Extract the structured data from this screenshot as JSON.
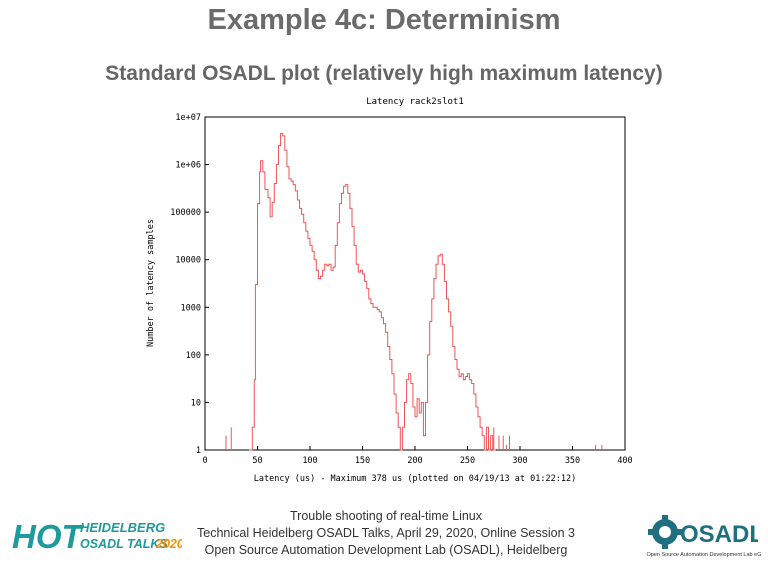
{
  "slide": {
    "title": "Example 4c: Determinism",
    "subtitle": "Standard OSADL plot (relatively high maximum latency)"
  },
  "footer": {
    "line1": "Trouble shooting of real-time Linux",
    "line2": "Technical Heidelberg OSADL Talks, April 29, 2020, Online Session 3",
    "line3": "Open Source Automation Development Lab (OSADL), Heidelberg"
  },
  "logos": {
    "left": {
      "hot": "HOT",
      "heidelberg": "HEIDELBERG",
      "talks": "OSADL TALKS",
      "year": "2020"
    },
    "right": {
      "name": "OSADL",
      "tagline": "Open Source Automation Development Lab eG"
    }
  },
  "colors": {
    "series": "#ee5555",
    "title": "#6b6b6b",
    "hot_teal": "#1e9a9a",
    "hot_orange": "#f39200",
    "osadl_teal": "#1f6f7f"
  },
  "chart_data": {
    "type": "line",
    "title": "Latency rack2slot1",
    "xlabel": "Latency (us) - Maximum 378 us (plotted on 04/19/13 at 01:22:12)",
    "ylabel": "Number of latency samples",
    "xlim": [
      0,
      400
    ],
    "ylim": [
      1,
      10000000
    ],
    "yscale": "log",
    "grid": false,
    "x_ticks": [
      "0",
      "50",
      "100",
      "150",
      "200",
      "250",
      "300",
      "350",
      "400"
    ],
    "y_ticks": [
      "1",
      "10",
      "100",
      "1000",
      "10000",
      "100000",
      "1e+06",
      "1e+07"
    ],
    "series": [
      {
        "points": [
          [
            42,
            1
          ],
          [
            45,
            3
          ],
          [
            47,
            30
          ],
          [
            48,
            3000
          ],
          [
            50,
            150000
          ],
          [
            52,
            700000
          ],
          [
            53,
            1200000
          ],
          [
            55,
            700000
          ],
          [
            57,
            300000
          ],
          [
            60,
            200000
          ],
          [
            62,
            80000
          ],
          [
            64,
            160000
          ],
          [
            66,
            400000
          ],
          [
            68,
            1000000
          ],
          [
            70,
            2500000
          ],
          [
            72,
            4500000
          ],
          [
            74,
            4000000
          ],
          [
            76,
            2000000
          ],
          [
            78,
            900000
          ],
          [
            80,
            500000
          ],
          [
            82,
            450000
          ],
          [
            84,
            380000
          ],
          [
            86,
            280000
          ],
          [
            88,
            180000
          ],
          [
            90,
            120000
          ],
          [
            92,
            90000
          ],
          [
            94,
            60000
          ],
          [
            96,
            40000
          ],
          [
            98,
            28000
          ],
          [
            100,
            20000
          ],
          [
            102,
            15000
          ],
          [
            104,
            10000
          ],
          [
            106,
            6000
          ],
          [
            108,
            4000
          ],
          [
            110,
            4500
          ],
          [
            112,
            6000
          ],
          [
            114,
            8000
          ],
          [
            116,
            7500
          ],
          [
            118,
            8000
          ],
          [
            120,
            6000
          ],
          [
            122,
            7000
          ],
          [
            124,
            20000
          ],
          [
            126,
            60000
          ],
          [
            128,
            150000
          ],
          [
            130,
            250000
          ],
          [
            132,
            350000
          ],
          [
            134,
            380000
          ],
          [
            136,
            250000
          ],
          [
            138,
            120000
          ],
          [
            140,
            50000
          ],
          [
            142,
            20000
          ],
          [
            144,
            8000
          ],
          [
            146,
            5500
          ],
          [
            148,
            6000
          ],
          [
            150,
            5000
          ],
          [
            152,
            3500
          ],
          [
            154,
            2500
          ],
          [
            156,
            1500
          ],
          [
            158,
            1200
          ],
          [
            160,
            1000
          ],
          [
            162,
            1000
          ],
          [
            164,
            900
          ],
          [
            166,
            800
          ],
          [
            168,
            600
          ],
          [
            170,
            450
          ],
          [
            172,
            300
          ],
          [
            174,
            150
          ],
          [
            176,
            80
          ],
          [
            178,
            40
          ],
          [
            180,
            15
          ],
          [
            182,
            6
          ],
          [
            184,
            3
          ],
          [
            186,
            1
          ],
          [
            188,
            3
          ],
          [
            190,
            10
          ],
          [
            192,
            30
          ],
          [
            194,
            40
          ],
          [
            196,
            25
          ],
          [
            198,
            8
          ],
          [
            200,
            5
          ],
          [
            202,
            12
          ],
          [
            204,
            6
          ],
          [
            206,
            10
          ],
          [
            208,
            2
          ],
          [
            210,
            10
          ],
          [
            212,
            100
          ],
          [
            214,
            500
          ],
          [
            216,
            1500
          ],
          [
            218,
            4000
          ],
          [
            220,
            8000
          ],
          [
            222,
            12000
          ],
          [
            224,
            13000
          ],
          [
            226,
            8000
          ],
          [
            228,
            3500
          ],
          [
            230,
            1500
          ],
          [
            232,
            800
          ],
          [
            234,
            400
          ],
          [
            236,
            150
          ],
          [
            238,
            80
          ],
          [
            240,
            50
          ],
          [
            242,
            35
          ],
          [
            244,
            40
          ],
          [
            246,
            30
          ],
          [
            248,
            35
          ],
          [
            250,
            40
          ],
          [
            252,
            30
          ],
          [
            254,
            25
          ],
          [
            256,
            15
          ],
          [
            258,
            8
          ],
          [
            260,
            5
          ],
          [
            262,
            3
          ],
          [
            264,
            2
          ],
          [
            266,
            1
          ],
          [
            268,
            3
          ],
          [
            270,
            1
          ],
          [
            272,
            2
          ],
          [
            274,
            1
          ],
          [
            276,
            1
          ]
        ]
      }
    ],
    "isolated_spikes": [
      [
        20,
        2
      ],
      [
        25,
        3
      ],
      [
        275,
        3
      ],
      [
        280,
        2
      ],
      [
        284,
        2
      ],
      [
        287,
        1
      ],
      [
        290,
        2
      ],
      [
        372,
        1
      ],
      [
        378,
        1
      ]
    ]
  }
}
